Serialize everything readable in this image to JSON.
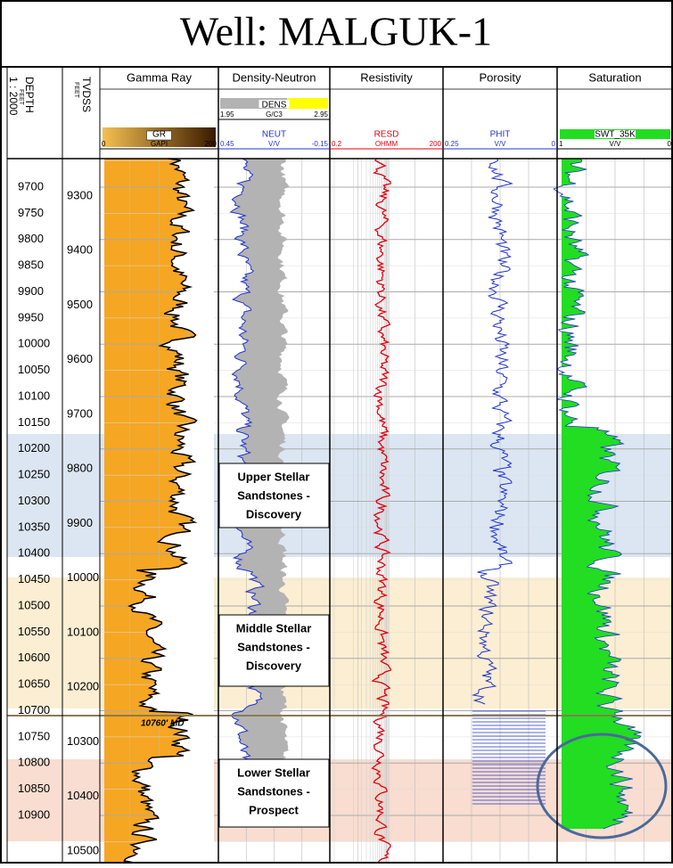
{
  "title": "Well: MALGUK-1",
  "depth_column": {
    "name": "DEPTH",
    "unit": "FEET",
    "scale": "1 : 2000",
    "labels": [
      9700,
      9750,
      9800,
      9850,
      9900,
      9950,
      10000,
      10050,
      10100,
      10150,
      10200,
      10250,
      10300,
      10350,
      10400,
      10450,
      10500,
      10550,
      10600,
      10650,
      10700,
      10750,
      10800,
      10850,
      10900
    ]
  },
  "tvdss_column": {
    "name": "TVDSS",
    "unit": "FEET",
    "labels": [
      9300,
      9400,
      9500,
      9600,
      9700,
      9800,
      9900,
      10000,
      10100,
      10200,
      10300,
      10400,
      10500
    ]
  },
  "tracks": [
    {
      "name": "Gamma Ray",
      "curves": [
        {
          "mnemonic": "GR",
          "unit": "GAPI",
          "left": "0",
          "right": "200"
        }
      ]
    },
    {
      "name": "Density-Neutron",
      "curves": [
        {
          "mnemonic": "DENS",
          "unit": "G/C3",
          "left": "1.95",
          "right": "2.95"
        },
        {
          "mnemonic": "NEUT",
          "unit": "V/V",
          "left": "0.45",
          "right": "-0.15"
        }
      ]
    },
    {
      "name": "Resistivity",
      "curves": [
        {
          "mnemonic": "RESD",
          "unit": "OHMM",
          "left": "0.2",
          "right": "200"
        }
      ]
    },
    {
      "name": "Porosity",
      "curves": [
        {
          "mnemonic": "PHIT",
          "unit": "V/V",
          "left": "0.25",
          "right": "0"
        }
      ]
    },
    {
      "name": "Saturation",
      "curves": [
        {
          "mnemonic": "SWT_35K",
          "unit": "V/V",
          "left": "1",
          "right": "0"
        }
      ]
    }
  ],
  "zones": [
    {
      "lines": [
        "Upper Stellar",
        "Sandstones -",
        "Discovery"
      ]
    },
    {
      "lines": [
        "Middle Stellar",
        "Sandstones -",
        "Discovery"
      ]
    },
    {
      "lines": [
        "Lower Stellar",
        "Sandstones -",
        "Prospect"
      ]
    }
  ],
  "annotation": "10760' MD"
}
